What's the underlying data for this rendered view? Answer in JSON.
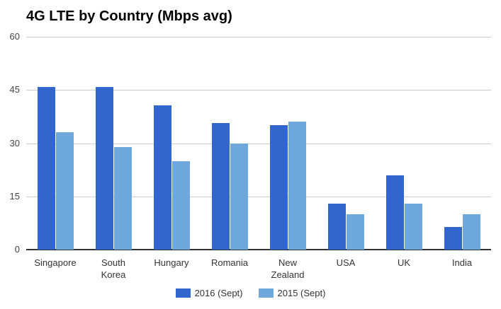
{
  "chart_data": {
    "type": "bar",
    "title": "4G LTE by Country (Mbps avg)",
    "xlabel": "",
    "ylabel": "",
    "ylim": [
      0,
      60
    ],
    "yticks": [
      "0",
      "15",
      "30",
      "45",
      "60"
    ],
    "grid": true,
    "legend_position": "bottom",
    "categories": [
      "Singapore",
      "South Korea",
      "Hungary",
      "Romania",
      "New Zealand",
      "USA",
      "UK",
      "India"
    ],
    "category_lines": [
      [
        "Singapore"
      ],
      [
        "South",
        "Korea"
      ],
      [
        "Hungary"
      ],
      [
        "Romania"
      ],
      [
        "New",
        "Zealand"
      ],
      [
        "USA"
      ],
      [
        "UK"
      ],
      [
        "India"
      ]
    ],
    "series": [
      {
        "name": "2016 (Sept)",
        "color": "#3366cc",
        "values": [
          45.8,
          45.8,
          40.6,
          35.6,
          35,
          13,
          21,
          6.3
        ]
      },
      {
        "name": "2015 (Sept)",
        "color": "#6fa8dc",
        "values": [
          33,
          29,
          25,
          30,
          36,
          10,
          13,
          10
        ]
      }
    ]
  }
}
